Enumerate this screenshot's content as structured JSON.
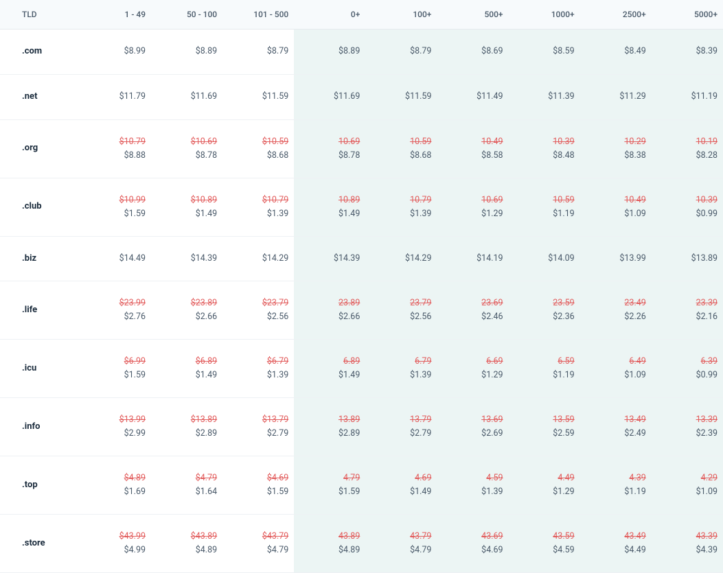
{
  "columns": [
    "TLD",
    "1 - 49",
    "50 - 100",
    "101 - 500",
    "0+",
    "100+",
    "500+",
    "1000+",
    "2500+",
    "5000+"
  ],
  "shaded_from_index": 4,
  "rows": [
    {
      "tld": ".com",
      "cells": [
        {
          "price": "$8.99"
        },
        {
          "price": "$8.89"
        },
        {
          "price": "$8.79"
        },
        {
          "price": "$8.89"
        },
        {
          "price": "$8.79"
        },
        {
          "price": "$8.69"
        },
        {
          "price": "$8.59"
        },
        {
          "price": "$8.49"
        },
        {
          "price": "$8.39"
        }
      ]
    },
    {
      "tld": ".net",
      "cells": [
        {
          "price": "$11.79"
        },
        {
          "price": "$11.69"
        },
        {
          "price": "$11.59"
        },
        {
          "price": "$11.69"
        },
        {
          "price": "$11.59"
        },
        {
          "price": "$11.49"
        },
        {
          "price": "$11.39"
        },
        {
          "price": "$11.29"
        },
        {
          "price": "$11.19"
        }
      ]
    },
    {
      "tld": ".org",
      "cells": [
        {
          "strike": "$10.79",
          "price": "$8.88"
        },
        {
          "strike": "$10.69",
          "price": "$8.78"
        },
        {
          "strike": "$10.59",
          "price": "$8.68"
        },
        {
          "strike": "10.69",
          "price": "$8.78"
        },
        {
          "strike": "10.59",
          "price": "$8.68"
        },
        {
          "strike": "10.49",
          "price": "$8.58"
        },
        {
          "strike": "10.39",
          "price": "$8.48"
        },
        {
          "strike": "10.29",
          "price": "$8.38"
        },
        {
          "strike": "10.19",
          "price": "$8.28"
        }
      ]
    },
    {
      "tld": ".club",
      "cells": [
        {
          "strike": "$10.99",
          "price": "$1.59"
        },
        {
          "strike": "$10.89",
          "price": "$1.49"
        },
        {
          "strike": "$10.79",
          "price": "$1.39"
        },
        {
          "strike": "10.89",
          "price": "$1.49"
        },
        {
          "strike": "10.79",
          "price": "$1.39"
        },
        {
          "strike": "10.69",
          "price": "$1.29"
        },
        {
          "strike": "10.59",
          "price": "$1.19"
        },
        {
          "strike": "10.49",
          "price": "$1.09"
        },
        {
          "strike": "10.39",
          "price": "$0.99"
        }
      ]
    },
    {
      "tld": ".biz",
      "cells": [
        {
          "price": "$14.49"
        },
        {
          "price": "$14.39"
        },
        {
          "price": "$14.29"
        },
        {
          "price": "$14.39"
        },
        {
          "price": "$14.29"
        },
        {
          "price": "$14.19"
        },
        {
          "price": "$14.09"
        },
        {
          "price": "$13.99"
        },
        {
          "price": "$13.89"
        }
      ]
    },
    {
      "tld": ".life",
      "cells": [
        {
          "strike": "$23.99",
          "price": "$2.76"
        },
        {
          "strike": "$23.89",
          "price": "$2.66"
        },
        {
          "strike": "$23.79",
          "price": "$2.56"
        },
        {
          "strike": "23.89",
          "price": "$2.66"
        },
        {
          "strike": "23.79",
          "price": "$2.56"
        },
        {
          "strike": "23.69",
          "price": "$2.46"
        },
        {
          "strike": "23.59",
          "price": "$2.36"
        },
        {
          "strike": "23.49",
          "price": "$2.26"
        },
        {
          "strike": "23.39",
          "price": "$2.16"
        }
      ]
    },
    {
      "tld": ".icu",
      "cells": [
        {
          "strike": "$6.99",
          "price": "$1.59"
        },
        {
          "strike": "$6.89",
          "price": "$1.49"
        },
        {
          "strike": "$6.79",
          "price": "$1.39"
        },
        {
          "strike": "6.89",
          "price": "$1.49"
        },
        {
          "strike": "6.79",
          "price": "$1.39"
        },
        {
          "strike": "6.69",
          "price": "$1.29"
        },
        {
          "strike": "6.59",
          "price": "$1.19"
        },
        {
          "strike": "6.49",
          "price": "$1.09"
        },
        {
          "strike": "6.39",
          "price": "$0.99"
        }
      ]
    },
    {
      "tld": ".info",
      "cells": [
        {
          "strike": "$13.99",
          "price": "$2.99"
        },
        {
          "strike": "$13.89",
          "price": "$2.89"
        },
        {
          "strike": "$13.79",
          "price": "$2.79"
        },
        {
          "strike": "13.89",
          "price": "$2.89"
        },
        {
          "strike": "13.79",
          "price": "$2.79"
        },
        {
          "strike": "13.69",
          "price": "$2.69"
        },
        {
          "strike": "13.59",
          "price": "$2.59"
        },
        {
          "strike": "13.49",
          "price": "$2.49"
        },
        {
          "strike": "13.39",
          "price": "$2.39"
        }
      ]
    },
    {
      "tld": ".top",
      "cells": [
        {
          "strike": "$4.89",
          "price": "$1.69"
        },
        {
          "strike": "$4.79",
          "price": "$1.64"
        },
        {
          "strike": "$4.69",
          "price": "$1.59"
        },
        {
          "strike": "4.79",
          "price": "$1.59"
        },
        {
          "strike": "4.69",
          "price": "$1.49"
        },
        {
          "strike": "4.59",
          "price": "$1.39"
        },
        {
          "strike": "4.49",
          "price": "$1.29"
        },
        {
          "strike": "4.39",
          "price": "$1.19"
        },
        {
          "strike": "4.29",
          "price": "$1.09"
        }
      ]
    },
    {
      "tld": ".store",
      "cells": [
        {
          "strike": "$43.99",
          "price": "$4.99"
        },
        {
          "strike": "$43.89",
          "price": "$4.89"
        },
        {
          "strike": "$43.79",
          "price": "$4.79"
        },
        {
          "strike": "43.89",
          "price": "$4.89"
        },
        {
          "strike": "43.79",
          "price": "$4.79"
        },
        {
          "strike": "43.69",
          "price": "$4.69"
        },
        {
          "strike": "43.59",
          "price": "$4.59"
        },
        {
          "strike": "43.49",
          "price": "$4.49"
        },
        {
          "strike": "43.39",
          "price": "$4.39"
        }
      ]
    }
  ]
}
